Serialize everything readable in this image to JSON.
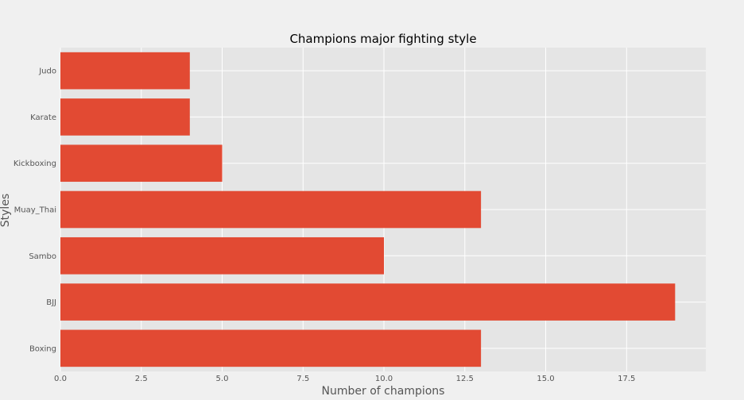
{
  "chart_data": {
    "type": "bar",
    "orientation": "horizontal",
    "title": "Champions major fighting style",
    "xlabel": "Number of champions",
    "ylabel": "Styles",
    "categories": [
      "Boxing",
      "BJJ",
      "Sambo",
      "Muay_Thai",
      "Kickboxing",
      "Karate",
      "Judo"
    ],
    "values": [
      13,
      19,
      10,
      13,
      5,
      4,
      4
    ],
    "xlim": [
      0,
      19.95
    ],
    "xticks": [
      "0.0",
      "2.5",
      "5.0",
      "7.5",
      "10.0",
      "12.5",
      "15.0",
      "17.5"
    ],
    "grid": true,
    "colors": {
      "bar": "#E24A33",
      "plot_bg": "#E5E5E5",
      "figure_bg": "#F0F0F0",
      "grid": "#FFFFFF"
    }
  }
}
